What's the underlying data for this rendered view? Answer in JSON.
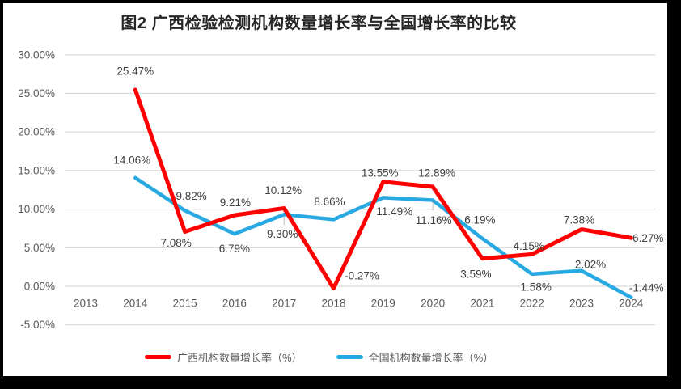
{
  "title": "图2 广西检验检测机构数量增长率与全国增长率的比较",
  "colors": {
    "guangxi_line": "#FF0000",
    "national_line": "#29A9E2",
    "grid": "#D9D9D9",
    "axis_text": "#595959",
    "label_text": "#404040",
    "title_text": "#262626",
    "leader": "#BFBFBF",
    "background": "#FFFFFF",
    "frame": "#000000"
  },
  "chart_data": {
    "type": "line",
    "title": "图2 广西检验检测机构数量增长率与全国增长率的比较",
    "categories": [
      "2013",
      "2014",
      "2015",
      "2016",
      "2017",
      "2018",
      "2019",
      "2020",
      "2021",
      "2022",
      "2023",
      "2024"
    ],
    "series": [
      {
        "name": "广西机构数量增长率（%）",
        "color": "#FF0000",
        "values": [
          null,
          25.47,
          7.08,
          9.21,
          10.12,
          -0.27,
          13.55,
          12.89,
          3.59,
          4.15,
          7.38,
          6.27
        ]
      },
      {
        "name": "全国机构数量增长率（%）",
        "color": "#29A9E2",
        "values": [
          null,
          14.06,
          9.82,
          6.79,
          9.3,
          8.66,
          11.49,
          11.16,
          6.19,
          1.58,
          2.02,
          -1.44
        ]
      }
    ],
    "xlabel": "",
    "ylabel": "",
    "ylim": [
      -5,
      30
    ],
    "ytick_step": 5,
    "yticks": [
      "30.00%",
      "25.00%",
      "20.00%",
      "15.00%",
      "10.00%",
      "5.00%",
      "0.00%",
      "-5.00%"
    ],
    "grid": true,
    "data_labels": true,
    "data_label_format": "0.00%",
    "legend_position": "bottom"
  }
}
